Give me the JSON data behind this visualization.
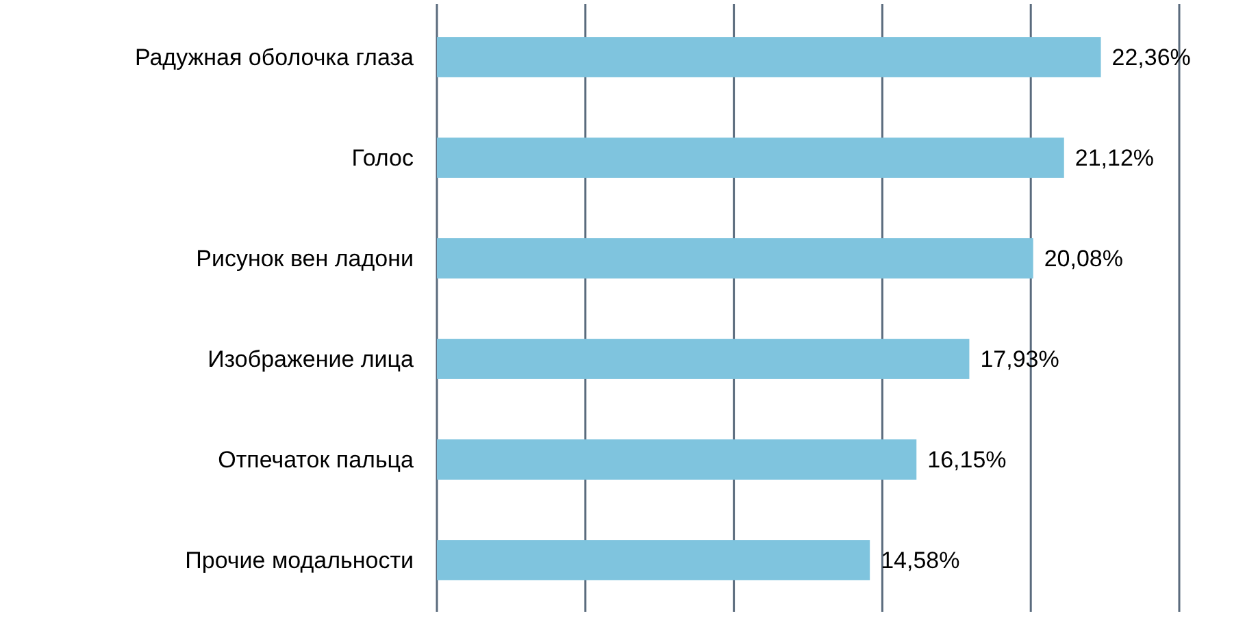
{
  "chart_data": {
    "type": "bar",
    "orientation": "horizontal",
    "categories": [
      "Радужная оболочка глаза",
      "Голос",
      "Рисунок вен ладони",
      "Изображение лица",
      "Отпечаток пальца",
      "Прочие модальности"
    ],
    "values": [
      22.36,
      21.12,
      20.08,
      17.93,
      16.15,
      14.58
    ],
    "value_labels": [
      "22,36%",
      "21,12%",
      "20,08%",
      "17,93%",
      "16,15%",
      "14,58%"
    ],
    "color": "#7fc4de",
    "xlim": [
      0,
      25
    ],
    "xticks": [
      {
        "value": 0,
        "label": null
      },
      {
        "value": 5,
        "label": null
      },
      {
        "value": 10,
        "label": null
      },
      {
        "value": 15,
        "label": null
      },
      {
        "value": 20,
        "label": null
      },
      {
        "value": 25,
        "label": null
      }
    ],
    "grid": "x",
    "tick_labels": "y"
  }
}
